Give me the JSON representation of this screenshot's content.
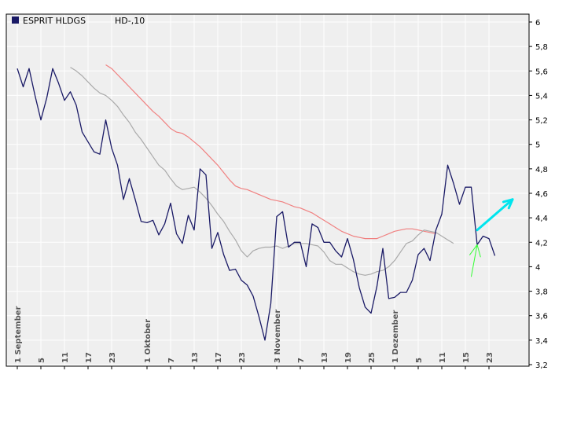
{
  "legend": {
    "symbol": "ESPRIT HLDGS",
    "code": "HD-,10"
  },
  "colors": {
    "background": "#efefef",
    "frame": "#000000",
    "grid": "#ffffff",
    "price_line": "#1a1a66",
    "ma_long": "#f08080",
    "ma_short": "#aaaaaa",
    "arrow_green": "#33ff33",
    "arrow_cyan": "#00e5ee",
    "legend_box": "#1a1a66"
  },
  "chart_data": {
    "type": "line",
    "title": "",
    "xlabel": "",
    "ylabel": "",
    "ylim": [
      3.2,
      6.0
    ],
    "y_ticks": [
      "6",
      "5,8",
      "5,6",
      "5,4",
      "5,2",
      "5",
      "4,8",
      "4,6",
      "4,4",
      "4,2",
      "4",
      "3,8",
      "3,6",
      "3,4",
      "3,2"
    ],
    "x_ticks": [
      {
        "i": 0,
        "label": "1 September"
      },
      {
        "i": 4,
        "label": "5"
      },
      {
        "i": 8,
        "label": "11"
      },
      {
        "i": 12,
        "label": "17"
      },
      {
        "i": 16,
        "label": "23"
      },
      {
        "i": 22,
        "label": "1 Oktober"
      },
      {
        "i": 26,
        "label": "7"
      },
      {
        "i": 30,
        "label": "13"
      },
      {
        "i": 34,
        "label": "17"
      },
      {
        "i": 38,
        "label": "23"
      },
      {
        "i": 44,
        "label": "3 November"
      },
      {
        "i": 48,
        "label": "7"
      },
      {
        "i": 52,
        "label": "13"
      },
      {
        "i": 56,
        "label": "19"
      },
      {
        "i": 60,
        "label": "25"
      },
      {
        "i": 64,
        "label": "1 Dezember"
      },
      {
        "i": 68,
        "label": "5"
      },
      {
        "i": 72,
        "label": "11"
      },
      {
        "i": 76,
        "label": "15"
      },
      {
        "i": 80,
        "label": "23"
      }
    ],
    "grid": true,
    "legend_position": "top-left",
    "x_count": 82,
    "series": [
      {
        "key": "price",
        "start": 0,
        "values": [
          5.62,
          5.47,
          5.62,
          5.4,
          5.2,
          5.38,
          5.62,
          5.5,
          5.36,
          5.43,
          5.32,
          5.1,
          5.02,
          4.94,
          4.92,
          5.2,
          4.97,
          4.83,
          4.55,
          4.72,
          4.55,
          4.37,
          4.36,
          4.38,
          4.26,
          4.35,
          4.52,
          4.27,
          4.19,
          4.42,
          4.3,
          4.8,
          4.75,
          4.15,
          4.28,
          4.1,
          3.97,
          3.98,
          3.89,
          3.85,
          3.76,
          3.59,
          3.4,
          3.7,
          4.41,
          4.45,
          4.16,
          4.2,
          4.2,
          4.0,
          4.35,
          4.32,
          4.2,
          4.2,
          4.13,
          4.08,
          4.23,
          4.06,
          3.83,
          3.67,
          3.62,
          3.84,
          4.15,
          3.74,
          3.75,
          3.79,
          3.79,
          3.89,
          4.1,
          4.15,
          4.05,
          4.3,
          4.43,
          4.83,
          4.68,
          4.51,
          4.65,
          4.65,
          4.18,
          4.25,
          4.23,
          4.09
        ]
      },
      {
        "key": "ma_short",
        "start": 9,
        "values": [
          5.63,
          5.6,
          5.56,
          5.51,
          5.46,
          5.42,
          5.4,
          5.36,
          5.31,
          5.24,
          5.18,
          5.1,
          5.04,
          4.97,
          4.9,
          4.83,
          4.79,
          4.72,
          4.66,
          4.63,
          4.64,
          4.65,
          4.61,
          4.56,
          4.5,
          4.43,
          4.37,
          4.29,
          4.22,
          4.13,
          4.08,
          4.13,
          4.15,
          4.16,
          4.16,
          4.17,
          4.15,
          4.17,
          4.19,
          4.19,
          4.19,
          4.18,
          4.17,
          4.12,
          4.05,
          4.02,
          4.02,
          3.99,
          3.96,
          3.94,
          3.93,
          3.94,
          3.96,
          3.97,
          4.0,
          4.05,
          4.12,
          4.19,
          4.21,
          4.26,
          4.3,
          4.29,
          4.28,
          4.25,
          4.22,
          4.19
        ]
      },
      {
        "key": "ma_long",
        "start": 15,
        "values": [
          5.65,
          5.62,
          5.57,
          5.52,
          5.47,
          5.42,
          5.37,
          5.32,
          5.27,
          5.23,
          5.18,
          5.13,
          5.1,
          5.09,
          5.06,
          5.02,
          4.98,
          4.93,
          4.88,
          4.83,
          4.77,
          4.71,
          4.66,
          4.64,
          4.63,
          4.61,
          4.59,
          4.57,
          4.55,
          4.54,
          4.53,
          4.51,
          4.49,
          4.48,
          4.46,
          4.44,
          4.41,
          4.38,
          4.35,
          4.32,
          4.29,
          4.27,
          4.25,
          4.24,
          4.23,
          4.23,
          4.23,
          4.25,
          4.27,
          4.29,
          4.3,
          4.31,
          4.31,
          4.3,
          4.29,
          4.28,
          4.27
        ]
      }
    ],
    "annotations": [
      {
        "type": "arrow",
        "color": "green",
        "from": [
          77,
          3.92
        ],
        "to": [
          78,
          4.18
        ]
      },
      {
        "type": "arrow",
        "color": "cyan",
        "from": [
          78,
          4.3
        ],
        "to": [
          84,
          4.55
        ]
      }
    ]
  }
}
